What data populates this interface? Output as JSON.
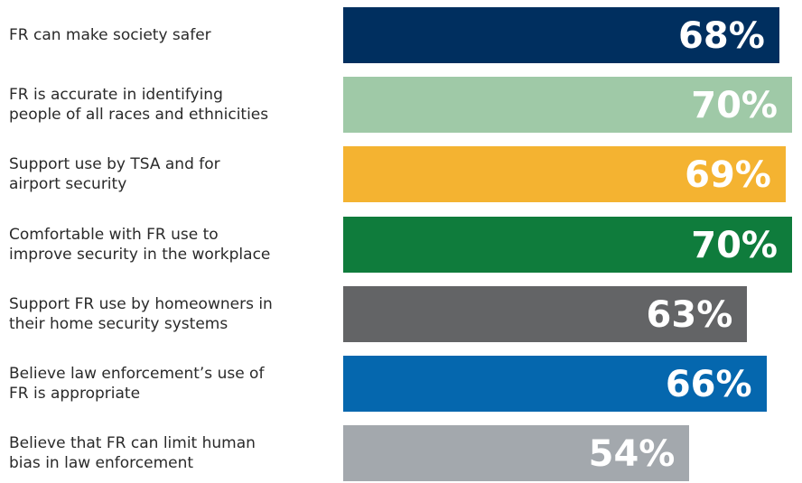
{
  "chart_data": {
    "type": "bar",
    "orientation": "horizontal",
    "categories": [
      "FR can make society safer",
      "FR is accurate in identifying\npeople of all races and ethnicities",
      "Support use by TSA and for\nairport security",
      "Comfortable with FR use to\nimprove security in the workplace",
      "Support FR use by homeowners in\ntheir home security systems",
      "Believe law enforcement’s use of\nFR is appropriate",
      "Believe that FR can limit human\nbias in law enforcement"
    ],
    "values": [
      68,
      70,
      69,
      70,
      63,
      66,
      54
    ],
    "value_labels": [
      "68%",
      "70%",
      "69%",
      "70%",
      "63%",
      "66%",
      "54%"
    ],
    "colors": [
      "#002f5f",
      "#9fc9a7",
      "#f4b331",
      "#0f7c3c",
      "#636466",
      "#0567ae",
      "#a3a8ad"
    ],
    "xlim": [
      0,
      100
    ],
    "title": "",
    "xlabel": "",
    "ylabel": "",
    "grid": false,
    "legend": "none"
  }
}
